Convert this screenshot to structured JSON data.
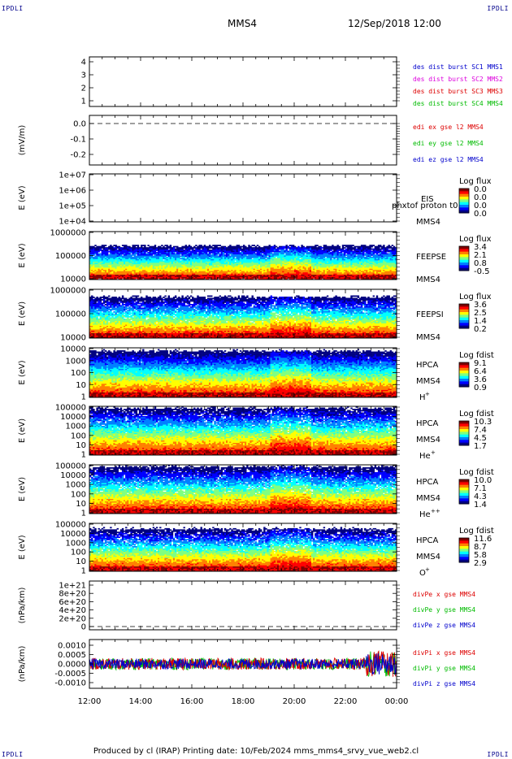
{
  "header": {
    "corner_tl": "IPDLI",
    "corner_tr": "IPDLI",
    "corner_bl": "IPDLI",
    "corner_br": "IPDLI",
    "spacecraft": "MMS4",
    "datetime": "12/Sep/2018 12:00"
  },
  "footer": {
    "text": "Produced by cl (IRAP)   Printing date: 10/Feb/2024   mms_mms4_srvy_vue_web2.cl"
  },
  "time_axis": {
    "ticks": [
      "12:00",
      "14:00",
      "16:00",
      "18:00",
      "20:00",
      "22:00",
      "00:00"
    ]
  },
  "colors": {
    "blue": "#0000cc",
    "magenta": "#dd00dd",
    "red": "#dd0000",
    "green": "#00bb00",
    "spectrogram_ramp": [
      "#000080",
      "#0000ff",
      "#0080ff",
      "#00ffff",
      "#80ff80",
      "#ffff00",
      "#ff8000",
      "#ff0000",
      "#800000"
    ]
  },
  "chart_data": [
    {
      "type": "line",
      "panel": "burst",
      "ylabel": "",
      "ylim": [
        0.6,
        4.5
      ],
      "yticks": [
        "1",
        "2",
        "3",
        "4"
      ],
      "grid": false,
      "legend": [
        "des dist burst SC1 MMS1",
        "des dist burst SC2 MMS2",
        "des dist burst SC3 MMS3",
        "des dist burst SC4 MMS4"
      ],
      "legend_colors": [
        "#0000cc",
        "#dd00dd",
        "#dd0000",
        "#00bb00"
      ],
      "series": []
    },
    {
      "type": "line",
      "panel": "edi",
      "ylabel": "(mV/m)",
      "ylim": [
        -0.25,
        0.05
      ],
      "yticks": [
        "0.0",
        "-0.1",
        "-0.2"
      ],
      "legend": [
        "edi ex gse l2 MMS4",
        "edi ey gse l2 MMS4",
        "edi ez gse l2 MMS4"
      ],
      "legend_colors": [
        "#dd0000",
        "#00bb00",
        "#0000cc"
      ],
      "dashed_zero": true,
      "series": []
    },
    {
      "type": "heatmap",
      "panel": "eis",
      "ylabel": "E (eV)",
      "yticks": [
        "1e+07",
        "1e+06",
        "1e+05",
        "1e+04"
      ],
      "instrument": "EIS",
      "overlay_text": "phxtof proton t0",
      "spacecraft": "MMS4",
      "colorbar": {
        "title": "Log flux",
        "ticks": [
          "0.0",
          "0.0",
          "0.0",
          "0.0"
        ]
      },
      "empty": true
    },
    {
      "type": "heatmap",
      "panel": "feepse",
      "ylabel": "E (eV)",
      "yticks": [
        "1000000",
        "100000",
        "10000"
      ],
      "instrument": "FEEPSE",
      "spacecraft": "MMS4",
      "colorbar": {
        "title": "Log flux",
        "ticks": [
          "3.4",
          "2.1",
          "0.8",
          "-0.5"
        ]
      },
      "fill_top": 0.72,
      "base_low": 0.38,
      "base_high": 0.55,
      "noise": 0.05
    },
    {
      "type": "heatmap",
      "panel": "feepsi",
      "ylabel": "E (eV)",
      "yticks": [
        "1000000",
        "100000",
        "10000"
      ],
      "instrument": "FEEPSI",
      "spacecraft": "MMS4",
      "colorbar": {
        "title": "Log flux",
        "ticks": [
          "3.6",
          "2.5",
          "1.4",
          "0.2"
        ]
      },
      "fill_top": 0.86,
      "base_low": 0.3,
      "base_high": 0.5,
      "noise": 0.1
    },
    {
      "type": "heatmap",
      "panel": "hpca_h",
      "ylabel": "E (eV)",
      "yticks": [
        "10000",
        "1000",
        "100",
        "10",
        "1"
      ],
      "instrument": "HPCA",
      "spacecraft": "MMS4",
      "species": "H",
      "charge": "+",
      "colorbar": {
        "title": "Log fdist",
        "ticks": [
          "9.1",
          "6.4",
          "3.6",
          "0.9"
        ]
      },
      "fill_top": 0.95,
      "base_low": 0.7,
      "base_high": 0.85,
      "noise": 0.03
    },
    {
      "type": "heatmap",
      "panel": "hpca_he",
      "ylabel": "E (eV)",
      "yticks": [
        "100000",
        "10000",
        "1000",
        "100",
        "10",
        "1"
      ],
      "instrument": "HPCA",
      "spacecraft": "MMS4",
      "species": "He",
      "charge": "+",
      "colorbar": {
        "title": "Log fdist",
        "ticks": [
          "10.3",
          "7.4",
          "4.5",
          "1.7"
        ]
      },
      "fill_top": 0.98,
      "base_low": 0.45,
      "base_high": 0.65,
      "noise": 0.12
    },
    {
      "type": "heatmap",
      "panel": "hpca_hepp",
      "ylabel": "E (eV)",
      "yticks": [
        "100000",
        "10000",
        "1000",
        "100",
        "10",
        "1"
      ],
      "instrument": "HPCA",
      "spacecraft": "MMS4",
      "species": "He",
      "charge": "++",
      "colorbar": {
        "title": "Log fdist",
        "ticks": [
          "10.0",
          "7.1",
          "4.3",
          "1.4"
        ]
      },
      "fill_top": 0.98,
      "base_low": 0.4,
      "base_high": 0.55,
      "noise": 0.1
    },
    {
      "type": "heatmap",
      "panel": "hpca_o",
      "ylabel": "E (eV)",
      "yticks": [
        "100000",
        "10000",
        "1000",
        "100",
        "10",
        "1"
      ],
      "instrument": "HPCA",
      "spacecraft": "MMS4",
      "species": "O",
      "charge": "+",
      "colorbar": {
        "title": "Log fdist",
        "ticks": [
          "11.6",
          "8.7",
          "5.8",
          "2.9"
        ]
      },
      "fill_top": 0.9,
      "base_low": 0.35,
      "base_high": 0.7,
      "noise": 0.18
    },
    {
      "type": "line",
      "panel": "divpe",
      "ylabel": "(nPa/km)",
      "ylim": [
        -1e+20,
        1.08e+21
      ],
      "yticks": [
        "1e+21",
        "8e+20",
        "6e+20",
        "4e+20",
        "2e+20",
        "0"
      ],
      "legend": [
        "divPe x gse MMS4",
        "divPe y gse MMS4",
        "divPe z gse MMS4"
      ],
      "legend_colors": [
        "#dd0000",
        "#00bb00",
        "#0000cc"
      ],
      "dashed_zero": true,
      "series": []
    },
    {
      "type": "line",
      "panel": "divpi",
      "ylabel": "(nPa/km)",
      "ylim": [
        -0.00125,
        0.00125
      ],
      "yticks": [
        "0.0010",
        "0.0005",
        "0.0000",
        "-0.0005",
        "-0.0010"
      ],
      "legend": [
        "divPi x gse MMS4",
        "divPi y gse MMS4",
        "divPi z gse MMS4"
      ],
      "legend_colors": [
        "#dd0000",
        "#00bb00",
        "#0000cc"
      ],
      "amplitude": 0.0003
    }
  ]
}
